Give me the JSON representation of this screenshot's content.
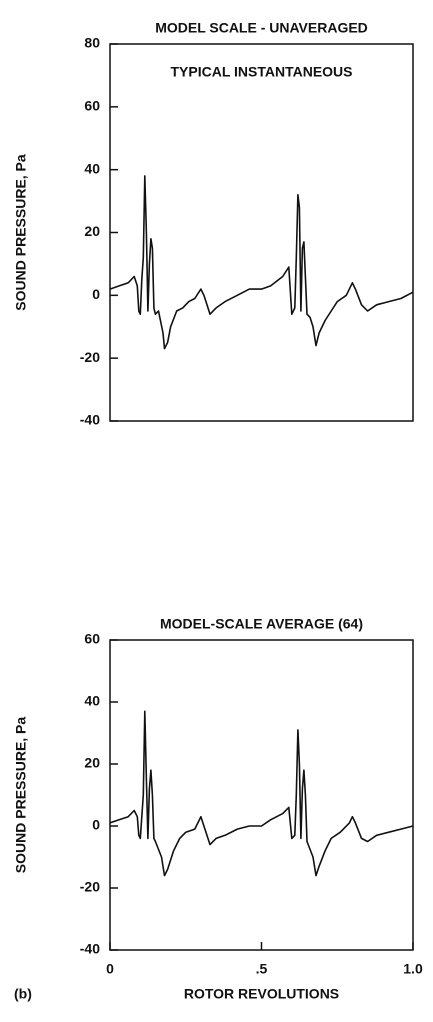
{
  "chart_data": [
    {
      "type": "line",
      "title": "MODEL SCALE - UNAVERAGED",
      "annotation": "TYPICAL INSTANTANEOUS",
      "ylabel": "SOUND PRESSURE, Pa",
      "xlim": [
        0,
        1
      ],
      "ylim": [
        -40,
        80
      ],
      "yticks": [
        80,
        60,
        40,
        20,
        0,
        -20,
        -40
      ],
      "color": "#111111",
      "x": [
        0,
        0.03,
        0.06,
        0.08,
        0.09,
        0.095,
        0.1,
        0.105,
        0.11,
        0.115,
        0.12,
        0.125,
        0.13,
        0.135,
        0.14,
        0.145,
        0.15,
        0.16,
        0.175,
        0.18,
        0.19,
        0.2,
        0.22,
        0.24,
        0.26,
        0.28,
        0.3,
        0.31,
        0.32,
        0.33,
        0.35,
        0.38,
        0.42,
        0.46,
        0.5,
        0.53,
        0.57,
        0.59,
        0.6,
        0.61,
        0.615,
        0.62,
        0.625,
        0.63,
        0.635,
        0.64,
        0.65,
        0.66,
        0.67,
        0.68,
        0.69,
        0.71,
        0.73,
        0.75,
        0.78,
        0.8,
        0.81,
        0.83,
        0.85,
        0.88,
        0.92,
        0.96,
        1.0
      ],
      "values": [
        2,
        3,
        4,
        6,
        3,
        -5,
        -6,
        5,
        12,
        38,
        20,
        -5,
        10,
        18,
        15,
        -4,
        -6,
        -5,
        -12,
        -17,
        -15,
        -10,
        -5,
        -4,
        -2,
        -1,
        2,
        0,
        -3,
        -6,
        -4,
        -2,
        0,
        2,
        2,
        3,
        6,
        9,
        -6,
        -4,
        12,
        32,
        28,
        -5,
        15,
        17,
        -6,
        -7,
        -10,
        -16,
        -12,
        -8,
        -5,
        -2,
        0,
        4,
        2,
        -3,
        -5,
        -3,
        -2,
        -1,
        1
      ]
    },
    {
      "type": "line",
      "title": "MODEL-SCALE AVERAGE (64)",
      "ylabel": "SOUND PRESSURE, Pa",
      "xlabel": "ROTOR REVOLUTIONS",
      "panel_label": "(b)",
      "xlim": [
        0,
        1
      ],
      "ylim": [
        -40,
        60
      ],
      "yticks": [
        60,
        40,
        20,
        0,
        -20,
        -40
      ],
      "xticks": [
        0,
        {
          "value": 0.5,
          "label": ".5"
        },
        {
          "value": 1,
          "label": "1.0"
        }
      ],
      "color": "#111111",
      "x": [
        0,
        0.03,
        0.06,
        0.08,
        0.09,
        0.095,
        0.1,
        0.11,
        0.115,
        0.12,
        0.125,
        0.13,
        0.135,
        0.14,
        0.145,
        0.15,
        0.17,
        0.18,
        0.19,
        0.21,
        0.23,
        0.25,
        0.28,
        0.3,
        0.31,
        0.33,
        0.35,
        0.38,
        0.42,
        0.46,
        0.5,
        0.53,
        0.57,
        0.59,
        0.6,
        0.61,
        0.615,
        0.62,
        0.625,
        0.63,
        0.635,
        0.64,
        0.645,
        0.65,
        0.67,
        0.68,
        0.69,
        0.71,
        0.73,
        0.76,
        0.79,
        0.8,
        0.81,
        0.83,
        0.85,
        0.88,
        0.92,
        0.96,
        1.0
      ],
      "values": [
        1,
        2,
        3,
        5,
        3,
        -3,
        -4,
        10,
        37,
        15,
        -4,
        12,
        18,
        10,
        -4,
        -5,
        -10,
        -16,
        -14,
        -8,
        -4,
        -2,
        -1,
        3,
        0,
        -6,
        -4,
        -3,
        -1,
        0,
        0,
        2,
        4,
        6,
        -4,
        -3,
        10,
        31,
        20,
        -4,
        12,
        18,
        10,
        -5,
        -10,
        -16,
        -13,
        -8,
        -4,
        -2,
        1,
        3,
        1,
        -4,
        -5,
        -3,
        -2,
        -1,
        0
      ]
    }
  ]
}
